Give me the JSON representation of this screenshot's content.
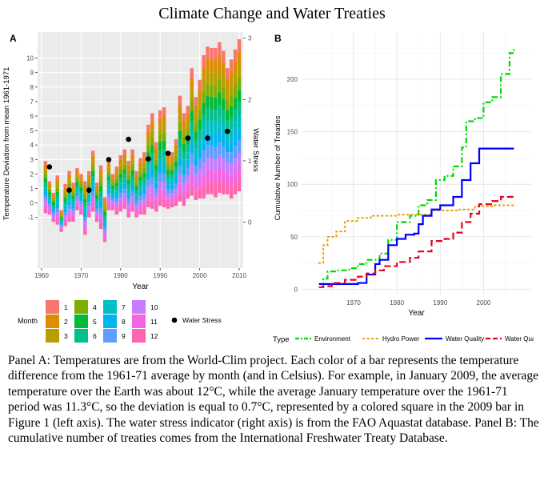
{
  "title": "Climate Change and Water Treaties",
  "caption": "Panel A: Temperatures are from the World-Clim project. Each color of a bar represents the temperature difference from the 1961-71 average by month (and in Celsius). For example, in January 2009, the average temperature over the Earth was about 12°C, while the average January temperature over the 1961-71 period was 11.3°C, so the deviation is equal to 0.7°C, represented by a colored square in the 2009 bar in Figure 1 (left axis). The water stress indicator (right axis) is from the FAO Aquastat database. Panel B: The cumulative number of treaties comes from the International Freshwater Treaty Database.",
  "colors": {
    "months": [
      "#F8766D",
      "#DE8C00",
      "#B79F00",
      "#7CAE00",
      "#00BA38",
      "#00C08B",
      "#00BFC4",
      "#00B4F0",
      "#619CFF",
      "#C77CFF",
      "#F564E3",
      "#FF64B0"
    ],
    "panel_bg": "#EBEBEB",
    "series": [
      "#00D800",
      "#E69F00",
      "#0000FF",
      "#E8001C"
    ]
  },
  "chart_data": [
    {
      "panel": "A",
      "type": "bar",
      "stacked": true,
      "xlabel": "Year",
      "ylabel": "Temperature Deviation from mean 1961-1971",
      "y2label": "Water Stress",
      "xlim": [
        1959,
        2011
      ],
      "ylim": [
        -4.5,
        11.8
      ],
      "y2lim": [
        -0.75,
        3.1
      ],
      "xticks": [
        1960,
        1970,
        1980,
        1990,
        2000,
        2010
      ],
      "yticks": [
        -1,
        0,
        1,
        2,
        3,
        4,
        5,
        6,
        7,
        8,
        9,
        10
      ],
      "y2ticks": [
        0,
        1,
        2,
        3
      ],
      "grid": true,
      "legend_title": "Month",
      "legend_items": [
        "1",
        "2",
        "3",
        "4",
        "5",
        "6",
        "7",
        "8",
        "9",
        "10",
        "11",
        "12"
      ],
      "point_legend_label": "Water Stress",
      "years": [
        1961,
        1962,
        1963,
        1964,
        1965,
        1966,
        1967,
        1968,
        1969,
        1970,
        1971,
        1972,
        1973,
        1974,
        1975,
        1976,
        1977,
        1978,
        1979,
        1980,
        1981,
        1982,
        1983,
        1984,
        1985,
        1986,
        1987,
        1988,
        1989,
        1990,
        1991,
        1992,
        1993,
        1994,
        1995,
        1996,
        1997,
        1998,
        1999,
        2000,
        2001,
        2002,
        2003,
        2004,
        2005,
        2006,
        2007,
        2008,
        2009,
        2010
      ],
      "bar_top": [
        2.9,
        1.5,
        0.7,
        1.9,
        -0.5,
        1.3,
        2.2,
        1.4,
        2.4,
        2.0,
        1.5,
        2.2,
        3.6,
        1.4,
        2.6,
        0.4,
        3.0,
        2.0,
        2.5,
        3.3,
        3.7,
        2.9,
        3.7,
        2.2,
        3.1,
        3.5,
        5.4,
        6.2,
        4.2,
        6.4,
        6.6,
        3.6,
        3.5,
        4.4,
        7.4,
        6.2,
        6.7,
        9.3,
        7.3,
        8.5,
        10.2,
        10.8,
        10.7,
        10.7,
        11.1,
        10.5,
        9.3,
        9.9,
        10.6,
        11.3
      ],
      "bar_bottom": [
        -0.7,
        -0.8,
        -1.3,
        -1.5,
        -2.0,
        -1.6,
        -1.3,
        -1.3,
        -0.5,
        -0.8,
        -2.2,
        -1.0,
        -0.6,
        -1.3,
        -1.8,
        -2.7,
        -0.5,
        -0.5,
        -0.8,
        -0.6,
        -0.4,
        -1.0,
        -0.6,
        -1.0,
        -0.8,
        -0.8,
        -0.3,
        -0.4,
        -0.6,
        -0.2,
        -0.3,
        -0.4,
        -0.3,
        -0.2,
        0.1,
        -0.2,
        0.3,
        0.5,
        0.2,
        0.3,
        0.3,
        0.6,
        0.6,
        0.4,
        0.7,
        0.6,
        0.6,
        0.3,
        0.6,
        0.8
      ],
      "water_stress": {
        "years": [
          1962,
          1967,
          1972,
          1977,
          1982,
          1987,
          1992,
          1997,
          2002,
          2007
        ],
        "values": [
          0.9,
          0.52,
          0.52,
          1.02,
          1.35,
          1.03,
          1.12,
          1.37,
          1.37,
          1.48
        ]
      }
    },
    {
      "panel": "B",
      "type": "line",
      "xlabel": "Year",
      "ylabel": "Cumulative Number of Treaties",
      "xlim": [
        1958,
        2011
      ],
      "ylim": [
        -5,
        245
      ],
      "xticks": [
        1970,
        1980,
        1990,
        2000
      ],
      "yticks": [
        0,
        50,
        100,
        150,
        200
      ],
      "grid": true,
      "legend_title": "Type",
      "legend_position": "bottom",
      "series": [
        {
          "name": "Environment",
          "style": "dashdot",
          "x": [
            1962,
            1963,
            1964,
            1966,
            1969,
            1971,
            1973,
            1976,
            1978,
            1980,
            1983,
            1985,
            1987,
            1989,
            1991,
            1993,
            1995,
            1996,
            1998,
            2000,
            2002,
            2004,
            2006,
            2007
          ],
          "y": [
            5,
            10,
            17,
            18,
            20,
            24,
            28,
            34,
            47,
            64,
            70,
            80,
            85,
            104,
            108,
            117,
            135,
            160,
            163,
            178,
            183,
            205,
            225,
            230
          ]
        },
        {
          "name": "Hydro Power",
          "style": "dotted",
          "x": [
            1962,
            1963,
            1964,
            1966,
            1968,
            1971,
            1974,
            1980,
            1988,
            1994,
            1998,
            2002,
            2007
          ],
          "y": [
            25,
            42,
            50,
            55,
            65,
            68,
            70,
            71,
            75,
            76,
            79,
            80,
            80
          ]
        },
        {
          "name": "Water Quality",
          "style": "solid",
          "x": [
            1962,
            1966,
            1968,
            1971,
            1973,
            1975,
            1976,
            1978,
            1980,
            1982,
            1984,
            1985,
            1986,
            1988,
            1990,
            1993,
            1995,
            1997,
            1999,
            2003,
            2007
          ],
          "y": [
            5,
            5,
            5,
            6,
            14,
            24,
            28,
            42,
            48,
            52,
            53,
            62,
            70,
            76,
            80,
            88,
            104,
            120,
            134,
            134,
            134
          ]
        },
        {
          "name": "Water Quantity",
          "style": "dashed",
          "x": [
            1962,
            1963,
            1965,
            1968,
            1971,
            1973,
            1975,
            1977,
            1980,
            1983,
            1985,
            1988,
            1991,
            1993,
            1995,
            1997,
            1999,
            2002,
            2004,
            2007
          ],
          "y": [
            2,
            3,
            6,
            9,
            12,
            15,
            18,
            22,
            26,
            30,
            36,
            46,
            48,
            54,
            64,
            72,
            81,
            84,
            88,
            90
          ]
        }
      ]
    }
  ]
}
